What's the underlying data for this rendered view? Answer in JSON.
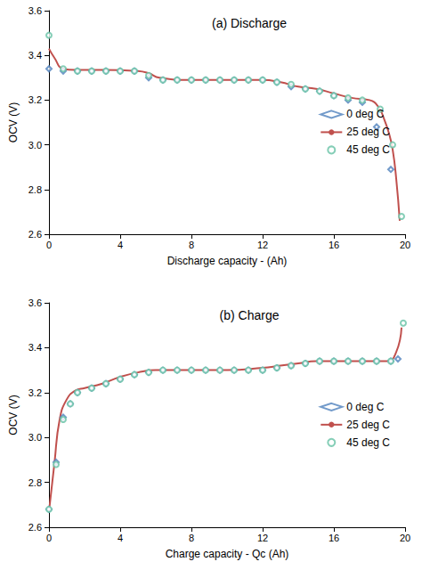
{
  "chart_data": [
    {
      "type": "line",
      "title": "(a) Discharge",
      "x_label": "Discharge capacity - (Ah)",
      "y_label": "OCV (V)",
      "xlim": [
        0,
        20
      ],
      "xticks": [
        0,
        4,
        8,
        12,
        16,
        20
      ],
      "ylim": [
        2.6,
        3.6
      ],
      "yticks": [
        2.6,
        2.8,
        {
          "value": 3,
          "label": "3.0"
        },
        3.2,
        3.4,
        3.6
      ],
      "grid": false,
      "legend": "right",
      "series": [
        {
          "name": "0 deg C",
          "type": "scatter",
          "marker": "diamond",
          "color": "#4f81bd",
          "x": [
            0,
            0.8,
            1.6,
            2.4,
            3.2,
            4.0,
            4.8,
            5.6,
            6.4,
            7.2,
            8.0,
            8.8,
            9.6,
            10.4,
            11.2,
            12.0,
            12.8,
            13.6,
            14.4,
            15.2,
            16.0,
            16.8,
            17.6,
            18.4,
            19.2
          ],
          "values": [
            3.34,
            3.33,
            3.33,
            3.33,
            3.33,
            3.33,
            3.33,
            3.3,
            3.29,
            3.29,
            3.29,
            3.29,
            3.29,
            3.29,
            3.29,
            3.29,
            3.28,
            3.26,
            3.25,
            3.24,
            3.22,
            3.2,
            3.19,
            3.08,
            2.89
          ]
        },
        {
          "name": "25 deg C",
          "type": "line",
          "marker": "none",
          "line_style": "solid",
          "color": "#c0504d",
          "x": [
            0,
            0.3,
            0.8,
            1.5,
            3,
            5,
            5.6,
            6.2,
            8,
            10,
            12,
            13,
            14,
            15,
            16,
            17,
            18,
            18.5,
            18.8,
            19.1,
            19.3,
            19.5,
            19.7
          ],
          "values": [
            3.43,
            3.39,
            3.34,
            3.335,
            3.335,
            3.33,
            3.32,
            3.3,
            3.29,
            3.29,
            3.29,
            3.28,
            3.26,
            3.25,
            3.23,
            3.21,
            3.2,
            3.17,
            3.12,
            3.05,
            2.98,
            2.85,
            2.66
          ]
        },
        {
          "name": "45 deg C",
          "type": "scatter",
          "marker": "circle",
          "color": "#66c2a5",
          "x": [
            0,
            0.8,
            1.6,
            2.4,
            3.2,
            4.0,
            4.8,
            5.6,
            6.4,
            7.2,
            8.0,
            8.8,
            9.6,
            10.4,
            11.2,
            12.0,
            12.8,
            13.6,
            14.4,
            15.2,
            16.0,
            16.8,
            17.6,
            18.6,
            19.3,
            19.8
          ],
          "values": [
            3.49,
            3.34,
            3.33,
            3.33,
            3.33,
            3.33,
            3.33,
            3.31,
            3.29,
            3.29,
            3.29,
            3.29,
            3.29,
            3.29,
            3.29,
            3.29,
            3.28,
            3.27,
            3.25,
            3.24,
            3.22,
            3.21,
            3.2,
            3.16,
            3.0,
            2.68
          ]
        }
      ]
    },
    {
      "type": "line",
      "title": "(b) Charge",
      "x_label": "Charge capacity - Qc (Ah)",
      "y_label": "OCV (V)",
      "xlim": [
        0,
        20
      ],
      "xticks": [
        0,
        4,
        8,
        12,
        16,
        20
      ],
      "ylim": [
        2.6,
        3.6
      ],
      "yticks": [
        2.6,
        2.8,
        {
          "value": 3,
          "label": "3.0"
        },
        3.2,
        3.4,
        3.6
      ],
      "grid": false,
      "legend": "right",
      "series": [
        {
          "name": "0 deg C",
          "type": "scatter",
          "marker": "diamond",
          "color": "#4f81bd",
          "x": [
            0,
            0.4,
            0.8,
            1.2,
            1.6,
            2.4,
            3.2,
            4.0,
            4.8,
            5.6,
            6.4,
            7.2,
            8.0,
            8.8,
            9.6,
            10.4,
            11.2,
            12.0,
            12.8,
            13.6,
            14.4,
            15.2,
            16.0,
            16.8,
            17.6,
            18.4,
            19.2,
            19.6
          ],
          "values": [
            2.68,
            2.89,
            3.09,
            3.15,
            3.2,
            3.22,
            3.24,
            3.26,
            3.28,
            3.29,
            3.3,
            3.3,
            3.3,
            3.3,
            3.3,
            3.3,
            3.3,
            3.3,
            3.31,
            3.32,
            3.33,
            3.34,
            3.34,
            3.34,
            3.34,
            3.34,
            3.34,
            3.35
          ]
        },
        {
          "name": "25 deg C",
          "type": "line",
          "marker": "none",
          "line_style": "solid",
          "color": "#c0504d",
          "x": [
            0,
            0.3,
            0.6,
            1.0,
            1.5,
            2.0,
            3.0,
            4.0,
            5.0,
            6.0,
            8.0,
            10.0,
            12.0,
            13.0,
            14.0,
            15.0,
            17.0,
            19.0,
            19.5,
            19.8
          ],
          "values": [
            2.67,
            2.88,
            3.08,
            3.17,
            3.21,
            3.22,
            3.24,
            3.27,
            3.29,
            3.3,
            3.3,
            3.3,
            3.31,
            3.32,
            3.33,
            3.34,
            3.34,
            3.34,
            3.38,
            3.49
          ]
        },
        {
          "name": "45 deg C",
          "type": "scatter",
          "marker": "circle",
          "color": "#66c2a5",
          "x": [
            0,
            0.4,
            0.8,
            1.2,
            1.6,
            2.4,
            3.2,
            4.0,
            4.8,
            5.6,
            6.4,
            7.2,
            8.0,
            8.8,
            9.6,
            10.4,
            11.2,
            12.0,
            12.8,
            13.6,
            14.4,
            15.2,
            16.0,
            16.8,
            17.6,
            18.4,
            19.2,
            19.9
          ],
          "values": [
            2.68,
            2.88,
            3.08,
            3.15,
            3.2,
            3.22,
            3.24,
            3.26,
            3.28,
            3.29,
            3.3,
            3.3,
            3.3,
            3.3,
            3.3,
            3.3,
            3.3,
            3.3,
            3.31,
            3.32,
            3.33,
            3.34,
            3.34,
            3.34,
            3.34,
            3.34,
            3.34,
            3.51
          ]
        }
      ]
    }
  ]
}
